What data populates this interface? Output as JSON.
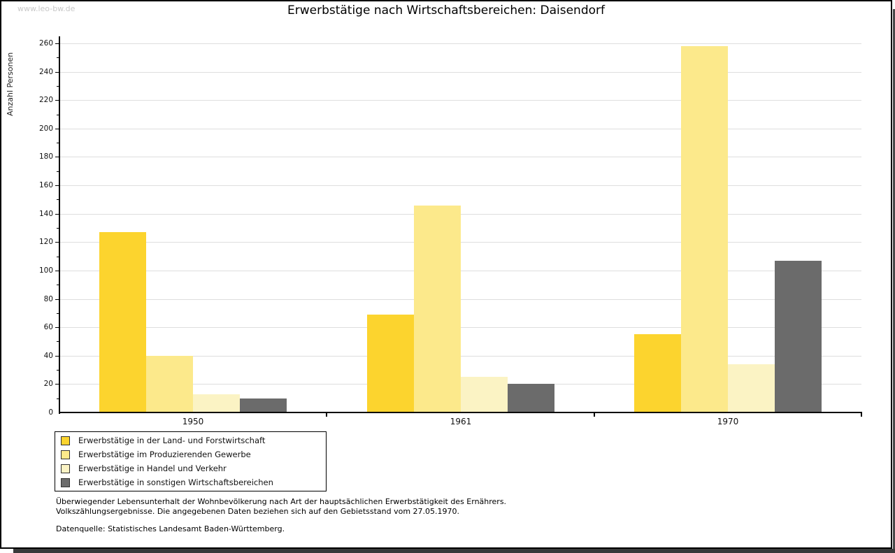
{
  "watermark": "www.leo-bw.de",
  "title": "Erwerbstätige nach Wirtschaftsbereichen: Daisendorf",
  "chart_data": {
    "type": "bar",
    "title": "Erwerbstätige nach Wirtschaftsbereichen: Daisendorf",
    "xlabel": "",
    "ylabel": "Anzahl Personen",
    "categories": [
      "1950",
      "1961",
      "1970"
    ],
    "series": [
      {
        "name": "Erwerbstätige in der Land- und Forstwirtschaft",
        "color": "#fcd42e",
        "values": [
          127,
          69,
          55
        ]
      },
      {
        "name": "Erwerbstätige im Produzierenden Gewerbe",
        "color": "#fce98b",
        "values": [
          40,
          146,
          258
        ]
      },
      {
        "name": "Erwerbstätige in Handel und Verkehr",
        "color": "#fbf3c4",
        "values": [
          13,
          25,
          34
        ]
      },
      {
        "name": "Erwerbstätige in sonstigen Wirtschaftsbereichen",
        "color": "#6b6b6b",
        "values": [
          10,
          20,
          107
        ]
      }
    ],
    "ylim": [
      0,
      260
    ],
    "ytick_step": 20,
    "minor_tick_step": 10,
    "grid": true,
    "legend_position": "bottom-left"
  },
  "footnotes": {
    "line1": "Überwiegender Lebensunterhalt der Wohnbevölkerung nach Art der hauptsächlichen Erwerbstätigkeit des Ernährers.",
    "line2": "Volkszählungsergebnisse. Die angegebenen Daten beziehen sich auf den Gebietsstand vom 27.05.1970.",
    "source": "Datenquelle: Statistisches Landesamt Baden-Württemberg."
  },
  "colors": {
    "gridline": "#dedede",
    "axis": "#000000",
    "tick_label": "#111111",
    "watermark": "#c8c8c8",
    "shadow": "#3a3a3a"
  }
}
